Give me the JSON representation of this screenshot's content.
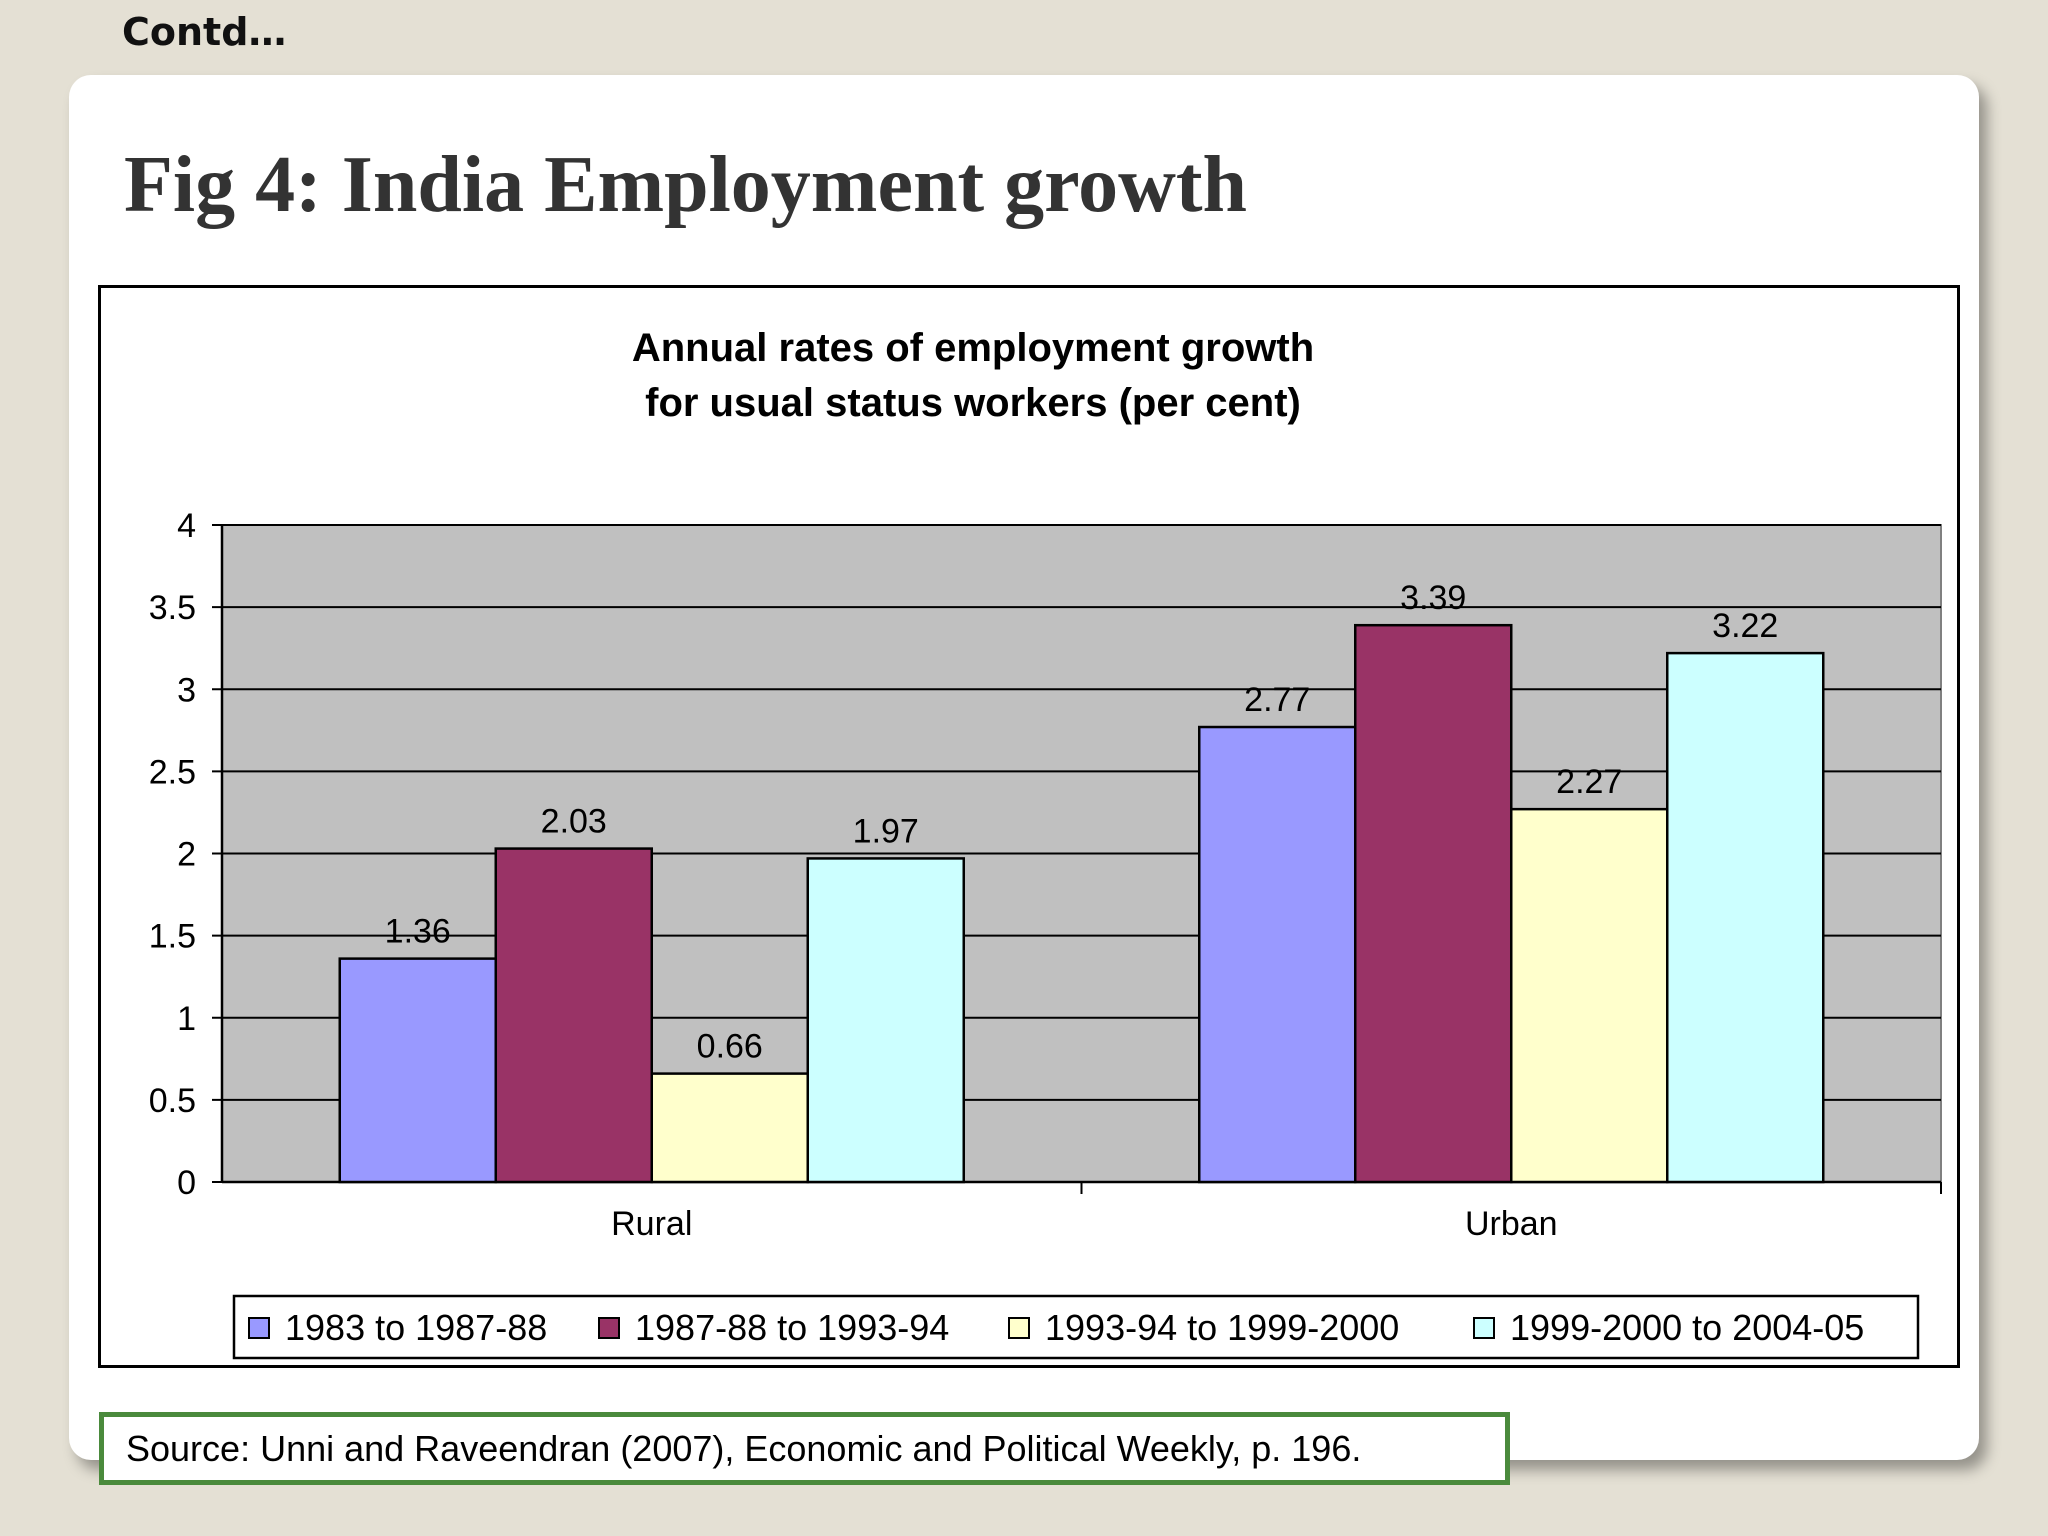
{
  "header": {
    "contd": "Contd…"
  },
  "slide": {
    "title": "Fig 4: India Employment growth",
    "source": "Source: Unni and Raveendran (2007), Economic and Political Weekly, p. 196."
  },
  "chart_data": {
    "type": "bar",
    "title": [
      "Annual rates of employment growth",
      "for usual status workers (per cent)"
    ],
    "categories": [
      "Rural",
      "Urban"
    ],
    "series": [
      {
        "name": "1983 to 1987-88",
        "values": [
          1.36,
          2.77
        ],
        "color": "#9999ff"
      },
      {
        "name": "1987-88 to 1993-94",
        "values": [
          2.03,
          3.39
        ],
        "color": "#993366"
      },
      {
        "name": "1993-94 to 1999-2000",
        "values": [
          0.66,
          2.27
        ],
        "color": "#ffffcc"
      },
      {
        "name": "1999-2000 to 2004-05",
        "values": [
          1.97,
          3.22
        ],
        "color": "#ccffff"
      }
    ],
    "data_labels": [
      [
        "1.36",
        "2.77"
      ],
      [
        "2.03",
        "3.39"
      ],
      [
        "0.66",
        "2.27"
      ],
      [
        "1.97",
        "3.22"
      ]
    ],
    "yticks": [
      "0",
      "0.5",
      "1",
      "1.5",
      "2",
      "2.5",
      "3",
      "3.5",
      "4"
    ],
    "ylim": [
      0,
      4
    ],
    "xlabel": "",
    "ylabel": "",
    "grid": true,
    "plot_background": "#c0c0c0",
    "legend_position": "bottom"
  }
}
